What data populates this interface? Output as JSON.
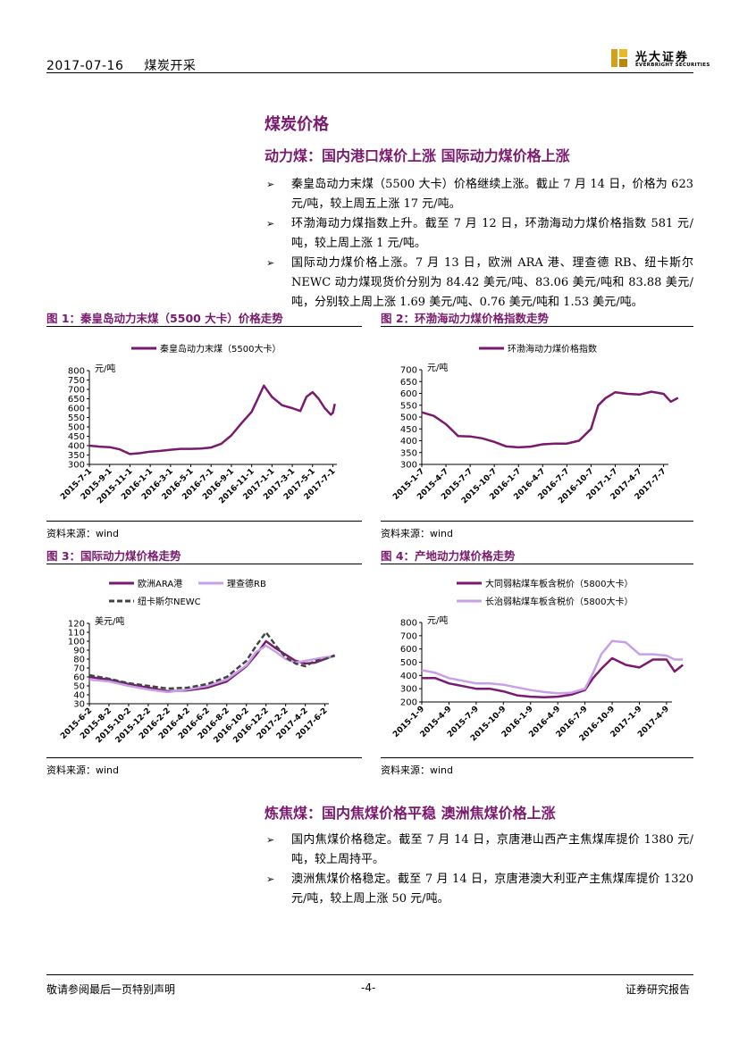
{
  "header": {
    "date": "2017-07-16",
    "category": "煤炭开采",
    "logo_cn": "光大证券",
    "logo_en": "EVERBRIGHT SECURITIES"
  },
  "section_title": "煤炭价格",
  "thermal": {
    "title": "动力煤：国内港口煤价上涨 国际动力煤价格上涨",
    "bullets": [
      "秦皇岛动力末煤（5500 大卡）价格继续上涨。截止 7 月 14 日，价格为 623 元/吨，较上周五上涨 17 元/吨。",
      "环渤海动力煤指数上升。截至 7 月 12 日，环渤海动力煤价格指数 581 元/吨，较上周上涨 1 元/吨。",
      "国际动力煤价格上涨。7 月 13 日，欧洲 ARA 港、理查德 RB、纽卡斯尔 NEWC 动力煤现货价分别为 84.42 美元/吨、83.06 美元/吨和 83.88 美元/吨，分别较上周上涨 1.69 美元/吨、0.76 美元/吨和 1.53 美元/吨。"
    ]
  },
  "figures": [
    {
      "title": "图 1：秦皇岛动力末煤（5500 大卡）价格走势",
      "source": "资料来源：wind"
    },
    {
      "title": "图 2：环渤海动力煤价格指数走势",
      "source": "资料来源：wind"
    },
    {
      "title": "图 3：国际动力煤价格走势",
      "source": "资料来源：wind"
    },
    {
      "title": "图 4：产地动力煤价格走势",
      "source": "资料来源：wind"
    }
  ],
  "coking": {
    "title": "炼焦煤：国内焦煤价格平稳 澳洲焦煤价格上涨",
    "bullets": [
      "国内焦煤价格稳定。截至 7 月 14 日，京唐港山西产主焦煤库提价 1380 元/吨，较上周持平。",
      "澳洲焦煤价格稳定。截至 7 月 14 日，京唐港澳大利亚产主焦煤库提价 1320 元/吨，较上周上涨 50 元/吨。"
    ]
  },
  "footer": {
    "left": "敬请参阅最后一页特别声明",
    "page": "-4-",
    "right": "证券研究报告"
  },
  "chart_data": [
    {
      "type": "line",
      "unit": "元/吨",
      "ylim": [
        300,
        800
      ],
      "yticks": [
        300,
        350,
        400,
        450,
        500,
        550,
        600,
        650,
        700,
        750,
        800
      ],
      "xticks": [
        "2015-7-1",
        "2015-9-1",
        "2015-11-1",
        "2016-1-1",
        "2016-3-1",
        "2016-5-1",
        "2016-7-1",
        "2016-9-1",
        "2016-11-1",
        "2017-1-1",
        "2017-3-1",
        "2017-5-1",
        "2017-7-1"
      ],
      "legend_position": "top",
      "grid": false,
      "series": [
        {
          "name": "秦皇岛动力末煤（5500大卡）",
          "color": "#7a1a6e",
          "x": [
            0,
            0.5,
            1,
            1.5,
            2,
            2.5,
            3,
            3.5,
            4,
            4.5,
            5,
            5.5,
            6,
            6.5,
            7,
            7.5,
            8,
            8.3,
            8.6,
            9,
            9.5,
            10,
            10.4,
            10.7,
            11,
            11.3,
            11.6,
            11.9,
            12,
            12.1
          ],
          "values": [
            400,
            395,
            392,
            380,
            355,
            360,
            368,
            372,
            378,
            383,
            383,
            385,
            390,
            410,
            455,
            520,
            580,
            650,
            720,
            660,
            615,
            600,
            585,
            660,
            685,
            650,
            600,
            565,
            575,
            623
          ]
        }
      ]
    },
    {
      "type": "line",
      "unit": "元/吨",
      "ylim": [
        300,
        700
      ],
      "yticks": [
        300,
        350,
        400,
        450,
        500,
        550,
        600,
        650,
        700
      ],
      "xticks": [
        "2015-1-7",
        "2015-4-7",
        "2015-7-7",
        "2015-10-7",
        "2016-1-7",
        "2016-4-7",
        "2016-7-7",
        "2016-10-7",
        "2017-1-7",
        "2017-4-7",
        "2017-7-7"
      ],
      "legend_position": "top",
      "grid": false,
      "series": [
        {
          "name": "环渤海动力煤价格指数",
          "color": "#7a1a6e",
          "x": [
            0,
            0.5,
            1,
            1.5,
            2,
            2.5,
            3,
            3.5,
            4,
            4.5,
            5,
            5.5,
            6,
            6.5,
            7,
            7.3,
            7.6,
            8,
            8.5,
            9,
            9.5,
            10,
            10.3,
            10.6
          ],
          "values": [
            520,
            505,
            470,
            420,
            418,
            410,
            395,
            376,
            372,
            375,
            385,
            388,
            388,
            400,
            450,
            550,
            580,
            605,
            598,
            595,
            607,
            598,
            565,
            581
          ]
        }
      ]
    },
    {
      "type": "line",
      "unit": "美元/吨",
      "ylim": [
        30,
        120
      ],
      "yticks": [
        30,
        40,
        50,
        60,
        70,
        80,
        90,
        100,
        110,
        120
      ],
      "xticks": [
        "2015-6-2",
        "2015-8-2",
        "2015-10-2",
        "2015-12-2",
        "2016-2-2",
        "2016-4-2",
        "2016-6-2",
        "2016-8-2",
        "2016-10-2",
        "2016-12-2",
        "2017-2-2",
        "2017-4-2",
        "2017-6-2"
      ],
      "legend_position": "top",
      "grid": false,
      "series": [
        {
          "name": "欧洲ARA港",
          "color": "#7a1a6e",
          "x": [
            0,
            1,
            2,
            3,
            4,
            5,
            6,
            7,
            8,
            8.5,
            9,
            9.5,
            10,
            10.5,
            11,
            11.5,
            12,
            12.5
          ],
          "values": [
            60,
            57,
            52,
            48,
            44,
            45,
            48,
            55,
            72,
            85,
            100,
            92,
            85,
            78,
            75,
            76,
            80,
            84.42
          ]
        },
        {
          "name": "理查德RB",
          "color": "#c8a0e8",
          "x": [
            0,
            1,
            2,
            3,
            4,
            5,
            6,
            7,
            8,
            8.5,
            9,
            9.5,
            10,
            10.5,
            11,
            11.5,
            12,
            12.5
          ],
          "values": [
            57,
            55,
            50,
            46,
            43,
            46,
            50,
            57,
            73,
            88,
            95,
            88,
            80,
            76,
            78,
            80,
            82,
            83.06
          ]
        },
        {
          "name": "纽卡斯尔NEWC",
          "color": "#444444",
          "dashed": true,
          "x": [
            0,
            1,
            2,
            3,
            4,
            5,
            6,
            7,
            8,
            8.5,
            9,
            9.5,
            10,
            10.5,
            11,
            11.5,
            12,
            12.5
          ],
          "values": [
            62,
            58,
            53,
            50,
            47,
            48,
            52,
            60,
            78,
            95,
            110,
            95,
            82,
            75,
            72,
            78,
            80,
            83.88
          ]
        }
      ]
    },
    {
      "type": "line",
      "unit": "元/吨",
      "ylim": [
        200,
        800
      ],
      "yticks": [
        200,
        300,
        400,
        500,
        600,
        700,
        800
      ],
      "xticks": [
        "2015-1-9",
        "2015-4-9",
        "2015-7-9",
        "2015-10-9",
        "2016-1-9",
        "2016-4-9",
        "2016-7-9",
        "2016-10-9",
        "2017-1-9",
        "2017-4-9"
      ],
      "legend_position": "top",
      "grid": false,
      "series": [
        {
          "name": "大同弱粘煤车板含税价（5800大卡）",
          "color": "#7a1a6e",
          "x": [
            0,
            0.5,
            1,
            1.5,
            2,
            2.5,
            3,
            3.5,
            4,
            4.5,
            5,
            5.5,
            6,
            6.3,
            6.6,
            7,
            7.5,
            8,
            8.5,
            9,
            9.3,
            9.6
          ],
          "values": [
            380,
            380,
            340,
            320,
            300,
            300,
            280,
            250,
            240,
            235,
            240,
            255,
            290,
            380,
            450,
            530,
            480,
            460,
            520,
            520,
            430,
            480
          ]
        },
        {
          "name": "长治弱粘煤车板含税价（5800大卡）",
          "color": "#c8a0e8",
          "x": [
            0,
            0.5,
            1,
            1.5,
            2,
            2.5,
            3,
            3.5,
            4,
            4.5,
            5,
            5.5,
            6,
            6.3,
            6.6,
            7,
            7.5,
            8,
            8.5,
            9,
            9.3,
            9.6
          ],
          "values": [
            440,
            420,
            380,
            360,
            340,
            340,
            330,
            310,
            290,
            275,
            265,
            270,
            300,
            420,
            560,
            660,
            650,
            560,
            560,
            550,
            520,
            520
          ]
        }
      ]
    }
  ]
}
